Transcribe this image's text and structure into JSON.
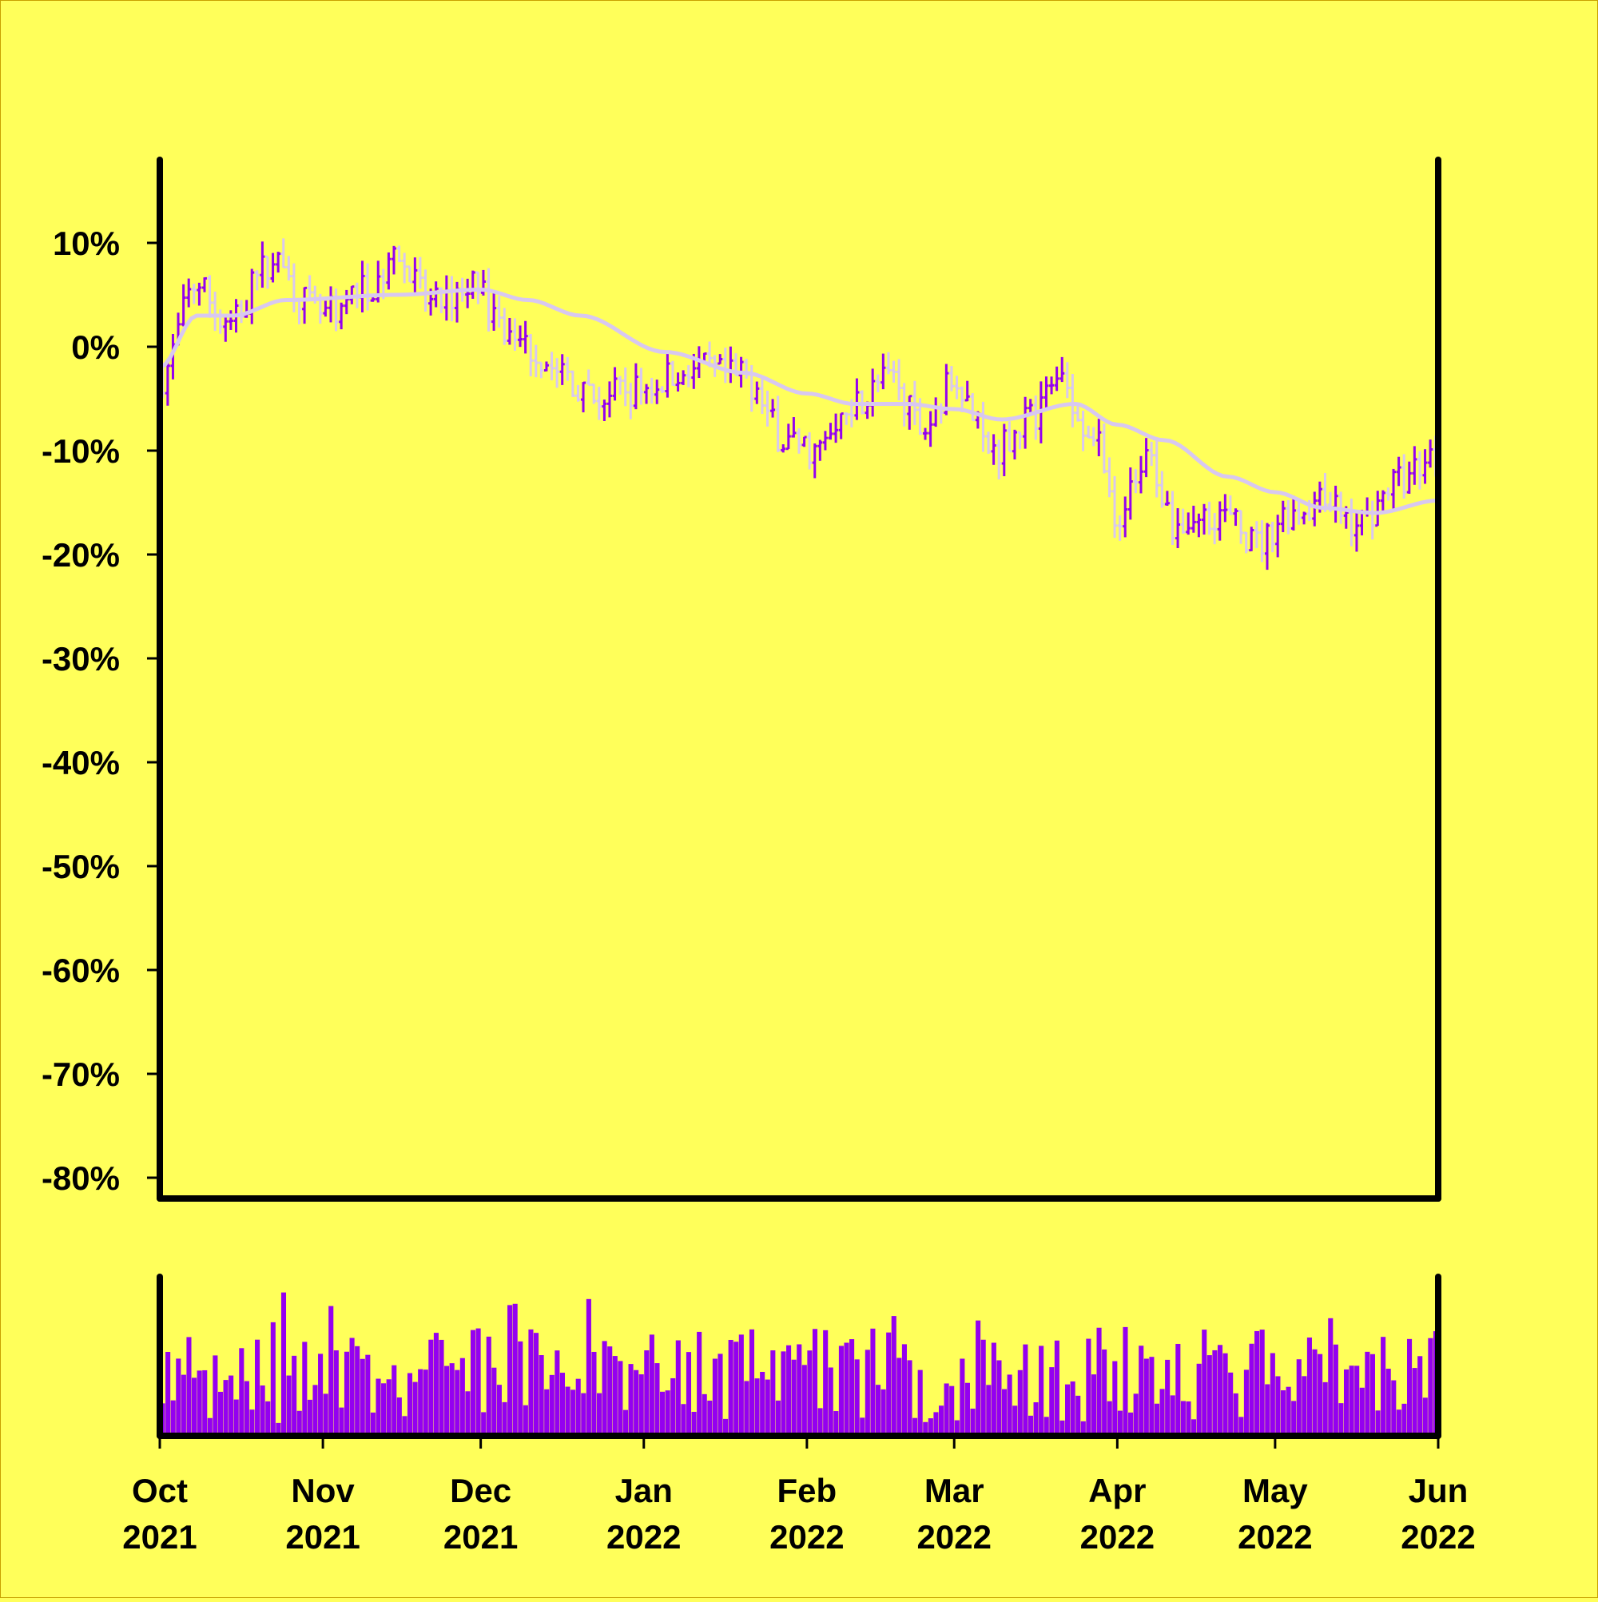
{
  "colors": {
    "background": "#ffff5a",
    "frame_border": "#c8a000",
    "axis": "#000000",
    "up_bar": "#9400f0",
    "down_bar": "#d8c8f0",
    "moving_average": "#d8c8f0",
    "volume": "#9400f0"
  },
  "chart_data": {
    "type": "ohlc",
    "x_axis": {
      "ticks": [
        {
          "label": "Oct\n2021",
          "date": "2021-10-01"
        },
        {
          "label": "Nov\n2021",
          "date": "2021-11-01"
        },
        {
          "label": "Dec\n2021",
          "date": "2021-12-01"
        },
        {
          "label": "Jan\n2022",
          "date": "2022-01-01"
        },
        {
          "label": "Feb\n2022",
          "date": "2022-02-01"
        },
        {
          "label": "Mar\n2022",
          "date": "2022-03-01"
        },
        {
          "label": "Apr\n2022",
          "date": "2022-04-01"
        },
        {
          "label": "May\n2022",
          "date": "2022-05-01"
        },
        {
          "label": "Jun\n2022",
          "date": "2022-06-01"
        }
      ],
      "range": [
        "2021-10-01",
        "2022-06-01"
      ]
    },
    "y_axis": {
      "ticks": [
        "10%",
        "0%",
        "-10%",
        "-20%",
        "-30%",
        "-40%",
        "-50%",
        "-60%",
        "-70%",
        "-80%"
      ],
      "tick_values": [
        10,
        0,
        -10,
        -20,
        -30,
        -40,
        -50,
        -60,
        -70,
        -80
      ],
      "ylim": [
        -82,
        18
      ],
      "unit": "%"
    },
    "grid": false,
    "price_keypoints": [
      {
        "date": "2021-10-01",
        "value": -3
      },
      {
        "date": "2021-10-08",
        "value": 6
      },
      {
        "date": "2021-10-14",
        "value": 2
      },
      {
        "date": "2021-10-22",
        "value": 8
      },
      {
        "date": "2021-11-01",
        "value": 3
      },
      {
        "date": "2021-11-10",
        "value": 6
      },
      {
        "date": "2021-11-15",
        "value": 8
      },
      {
        "date": "2021-11-22",
        "value": 4
      },
      {
        "date": "2021-11-29",
        "value": 6
      },
      {
        "date": "2021-12-07",
        "value": 1
      },
      {
        "date": "2021-12-15",
        "value": -2
      },
      {
        "date": "2021-12-22",
        "value": -5
      },
      {
        "date": "2022-01-01",
        "value": -4
      },
      {
        "date": "2022-01-09",
        "value": -2
      },
      {
        "date": "2022-01-20",
        "value": -3
      },
      {
        "date": "2022-01-28",
        "value": -9
      },
      {
        "date": "2022-02-03",
        "value": -10
      },
      {
        "date": "2022-02-10",
        "value": -5
      },
      {
        "date": "2022-02-17",
        "value": -3
      },
      {
        "date": "2022-02-23",
        "value": -8
      },
      {
        "date": "2022-03-01",
        "value": -3
      },
      {
        "date": "2022-03-08",
        "value": -10
      },
      {
        "date": "2022-03-15",
        "value": -7
      },
      {
        "date": "2022-03-21",
        "value": -3
      },
      {
        "date": "2022-03-27",
        "value": -8
      },
      {
        "date": "2022-04-01",
        "value": -16
      },
      {
        "date": "2022-04-07",
        "value": -11
      },
      {
        "date": "2022-04-12",
        "value": -17
      },
      {
        "date": "2022-04-20",
        "value": -16
      },
      {
        "date": "2022-04-28",
        "value": -19
      },
      {
        "date": "2022-05-03",
        "value": -16
      },
      {
        "date": "2022-05-10",
        "value": -15
      },
      {
        "date": "2022-05-17",
        "value": -17
      },
      {
        "date": "2022-05-24",
        "value": -13
      },
      {
        "date": "2022-06-01",
        "value": -10
      }
    ],
    "moving_average_keypoints": [
      {
        "date": "2021-10-01",
        "value": -2
      },
      {
        "date": "2021-10-08",
        "value": 3
      },
      {
        "date": "2021-10-15",
        "value": 3
      },
      {
        "date": "2021-10-25",
        "value": 4.5
      },
      {
        "date": "2021-11-15",
        "value": 5
      },
      {
        "date": "2021-12-01",
        "value": 5.5
      },
      {
        "date": "2021-12-10",
        "value": 4.5
      },
      {
        "date": "2021-12-20",
        "value": 3
      },
      {
        "date": "2022-01-05",
        "value": -0.5
      },
      {
        "date": "2022-01-20",
        "value": -2.5
      },
      {
        "date": "2022-02-01",
        "value": -4.5
      },
      {
        "date": "2022-02-10",
        "value": -5.5
      },
      {
        "date": "2022-02-20",
        "value": -5.5
      },
      {
        "date": "2022-03-01",
        "value": -6
      },
      {
        "date": "2022-03-10",
        "value": -7
      },
      {
        "date": "2022-03-24",
        "value": -5.5
      },
      {
        "date": "2022-04-01",
        "value": -7.5
      },
      {
        "date": "2022-04-10",
        "value": -9
      },
      {
        "date": "2022-04-22",
        "value": -12.5
      },
      {
        "date": "2022-05-01",
        "value": -14
      },
      {
        "date": "2022-05-10",
        "value": -15.5
      },
      {
        "date": "2022-05-20",
        "value": -16
      },
      {
        "date": "2022-06-01",
        "value": -14.8
      }
    ],
    "volume": {
      "shown": true,
      "range_relative": [
        0,
        1
      ]
    }
  }
}
